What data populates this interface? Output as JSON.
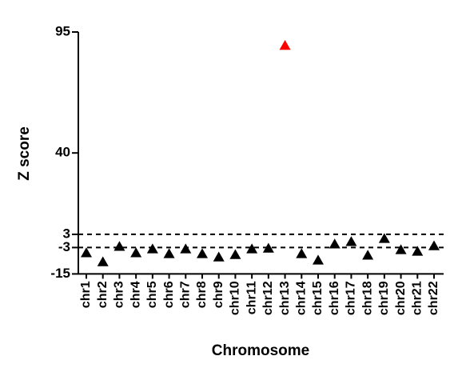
{
  "chart_data": {
    "type": "scatter",
    "x_label": "Chromosome",
    "y_label": "Z score",
    "categories": [
      "chr1",
      "chr2",
      "chr3",
      "chr4",
      "chr5",
      "chr6",
      "chr7",
      "chr8",
      "chr9",
      "chr10",
      "chr11",
      "chr12",
      "chr13",
      "chr14",
      "chr15",
      "chr16",
      "chr17",
      "chr18",
      "chr19",
      "chr20",
      "chr21",
      "chr22"
    ],
    "values": [
      -5.5,
      -9.6,
      -2.6,
      -5.5,
      -3.7,
      -5.9,
      -3.7,
      -5.9,
      -7.4,
      -6.3,
      -3.7,
      -3.4,
      88.8,
      -5.9,
      -8.8,
      -1.5,
      -0.4,
      -6.6,
      1.0,
      -4.1,
      -4.8,
      -2.3
    ],
    "point_colors": [
      "#000000",
      "#000000",
      "#000000",
      "#000000",
      "#000000",
      "#000000",
      "#000000",
      "#000000",
      "#000000",
      "#000000",
      "#000000",
      "#000000",
      "#ff0000",
      "#000000",
      "#000000",
      "#000000",
      "#000000",
      "#000000",
      "#000000",
      "#000000",
      "#000000",
      "#000000"
    ],
    "marker": "triangle",
    "ylim": [
      -15,
      95
    ],
    "yticks": [
      -15,
      -3,
      3,
      40,
      95
    ],
    "reference_lines": [
      3,
      -3
    ]
  }
}
